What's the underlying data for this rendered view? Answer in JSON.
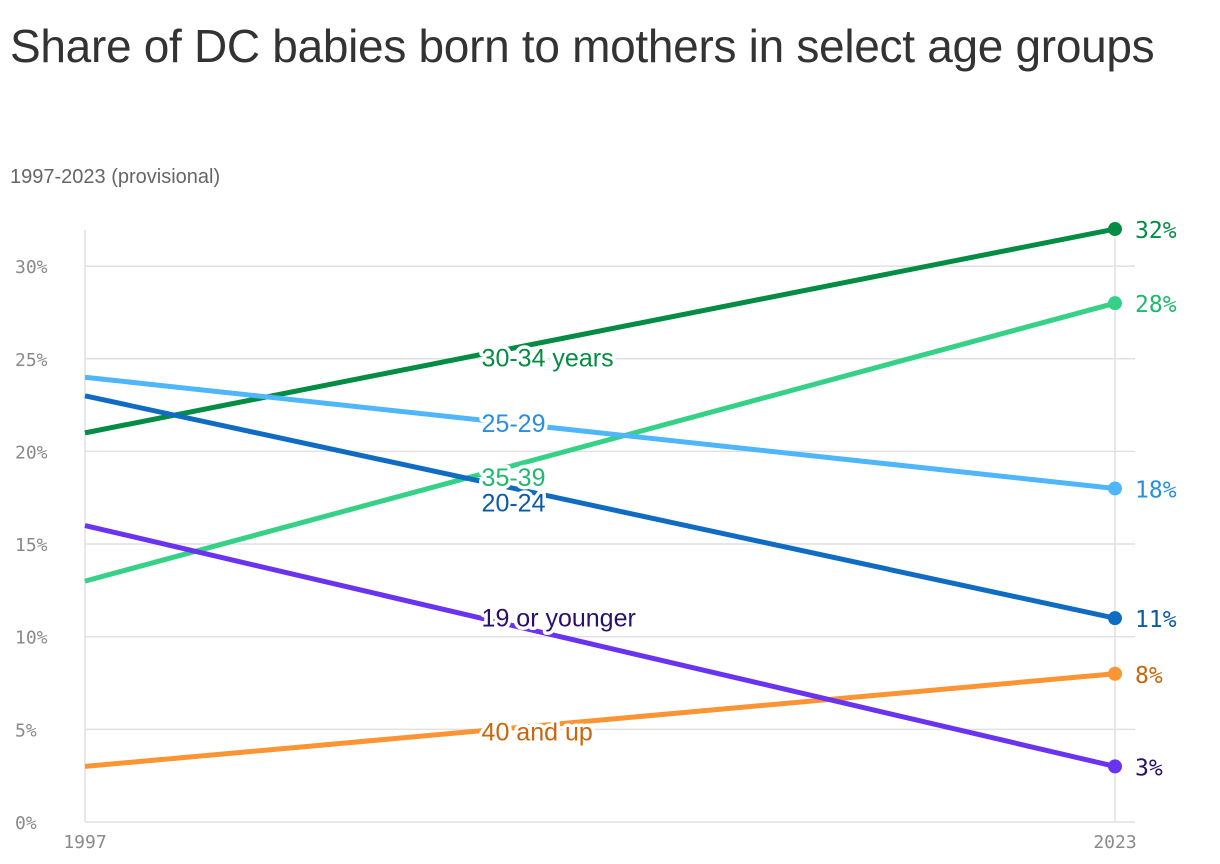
{
  "chart_data": {
    "type": "line",
    "title": "Share of DC babies born to mothers in select age groups",
    "subtitle": "1997-2023 (provisional)",
    "x": [
      "1997",
      "2023"
    ],
    "x_ticks": [
      "1997",
      "2023"
    ],
    "ylim": [
      0,
      32
    ],
    "y_ticks": [
      {
        "value": 0,
        "label": "0%"
      },
      {
        "value": 5,
        "label": "5%"
      },
      {
        "value": 10,
        "label": "10%"
      },
      {
        "value": 15,
        "label": "15%"
      },
      {
        "value": 20,
        "label": "20%"
      },
      {
        "value": 25,
        "label": "25%"
      },
      {
        "value": 30,
        "label": "30%"
      }
    ],
    "grid": true,
    "series": [
      {
        "name": "30-34 years",
        "values": [
          21,
          32
        ],
        "end_label": "32%",
        "color": "#038c43",
        "label_color": "#038c43"
      },
      {
        "name": "35-39",
        "values": [
          13,
          28
        ],
        "end_label": "28%",
        "color": "#35d187",
        "label_color": "#1fb86e"
      },
      {
        "name": "25-29",
        "values": [
          24,
          18
        ],
        "end_label": "18%",
        "color": "#4fb6f9",
        "label_color": "#2a8fe0"
      },
      {
        "name": "20-24",
        "values": [
          23,
          11
        ],
        "end_label": "11%",
        "color": "#106cc3",
        "label_color": "#0b5aa8"
      },
      {
        "name": "40 and up",
        "values": [
          3,
          8
        ],
        "end_label": "8%",
        "color": "#fb9433",
        "label_color": "#c9650a"
      },
      {
        "name": "19 or younger",
        "values": [
          16,
          3
        ],
        "end_label": "3%",
        "color": "#6a33f0",
        "label_color": "#2a0f6b"
      }
    ]
  }
}
